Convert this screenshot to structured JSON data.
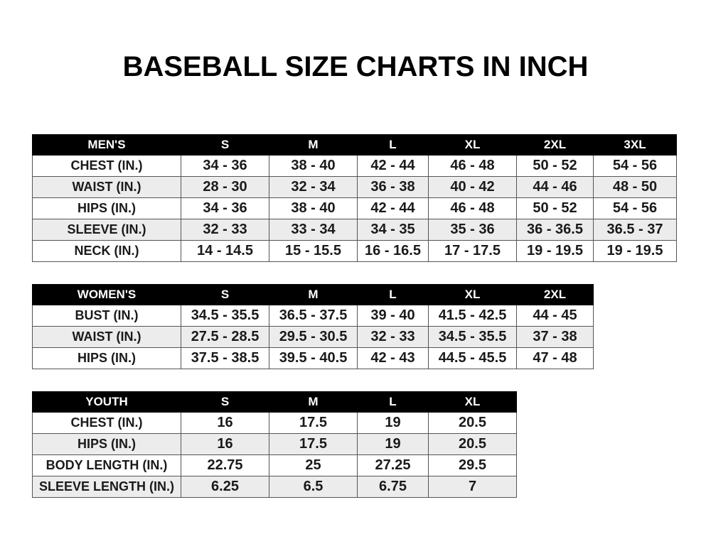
{
  "title": "BASEBALL SIZE CHARTS IN INCH",
  "tables": [
    {
      "id": "men",
      "header": [
        "MEN'S",
        "S",
        "M",
        "L",
        "XL",
        "2XL",
        "3XL"
      ],
      "rows": [
        [
          "CHEST (IN.)",
          "34 - 36",
          "38 - 40",
          "42 - 44",
          "46 - 48",
          "50 - 52",
          "54 - 56"
        ],
        [
          "WAIST (IN.)",
          "28 - 30",
          "32 - 34",
          "36 - 38",
          "40 - 42",
          "44 - 46",
          "48 - 50"
        ],
        [
          "HIPS (IN.)",
          "34 - 36",
          "38 - 40",
          "42 - 44",
          "46 - 48",
          "50 - 52",
          "54 - 56"
        ],
        [
          "SLEEVE (IN.)",
          "32 - 33",
          "33 - 34",
          "34 - 35",
          "35 - 36",
          "36 - 36.5",
          "36.5 - 37"
        ],
        [
          "NECK (IN.)",
          "14 - 14.5",
          "15 - 15.5",
          "16 - 16.5",
          "17 - 17.5",
          "19 - 19.5",
          "19 - 19.5"
        ]
      ]
    },
    {
      "id": "women",
      "header": [
        "WOMEN'S",
        "S",
        "M",
        "L",
        "XL",
        "2XL"
      ],
      "rows": [
        [
          "BUST (IN.)",
          "34.5 - 35.5",
          "36.5 - 37.5",
          "39 - 40",
          "41.5 - 42.5",
          "44 - 45"
        ],
        [
          "WAIST (IN.)",
          "27.5 - 28.5",
          "29.5 - 30.5",
          "32 - 33",
          "34.5 - 35.5",
          "37 - 38"
        ],
        [
          "HIPS (IN.)",
          "37.5 - 38.5",
          "39.5 - 40.5",
          "42 - 43",
          "44.5 - 45.5",
          "47 - 48"
        ]
      ]
    },
    {
      "id": "youth",
      "header": [
        "YOUTH",
        "S",
        "M",
        "L",
        "XL"
      ],
      "rows": [
        [
          "CHEST (IN.)",
          "16",
          "17.5",
          "19",
          "20.5"
        ],
        [
          "HIPS (IN.)",
          "16",
          "17.5",
          "19",
          "20.5"
        ],
        [
          "BODY LENGTH (IN.)",
          "22.75",
          "25",
          "27.25",
          "29.5"
        ],
        [
          "SLEEVE LENGTH (IN.)",
          "6.25",
          "6.5",
          "6.75",
          "7"
        ]
      ]
    }
  ]
}
